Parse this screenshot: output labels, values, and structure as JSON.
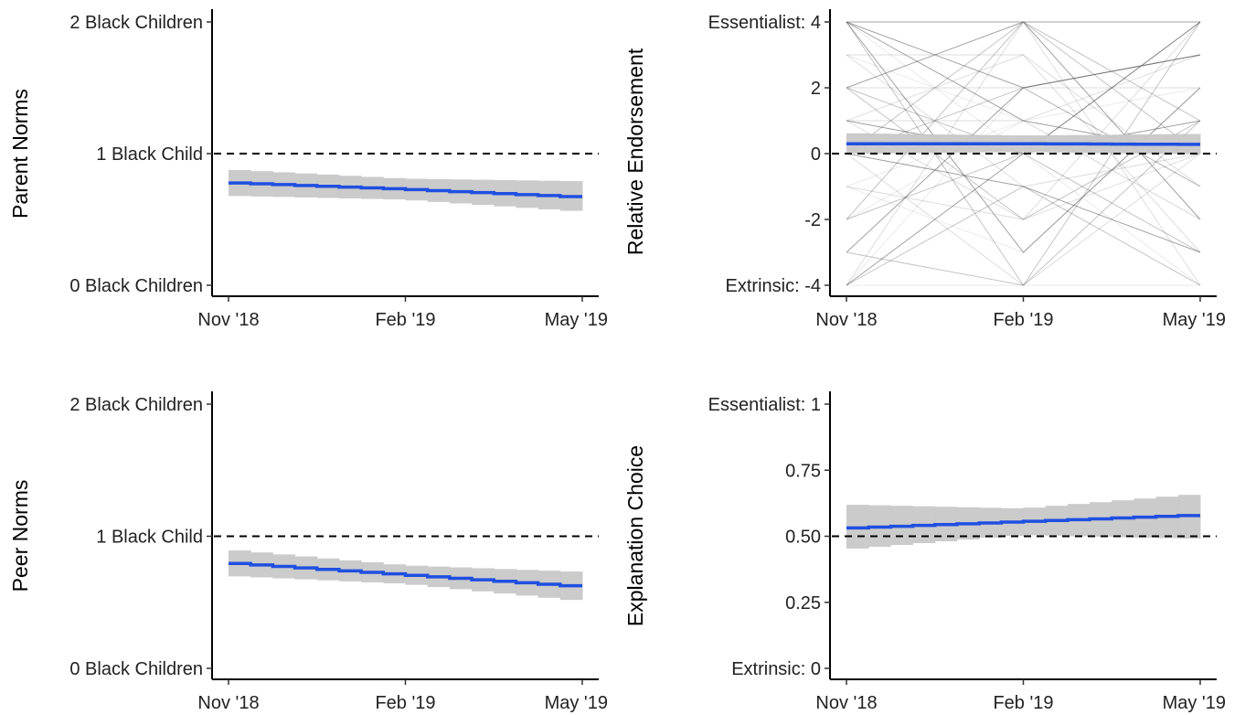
{
  "chart_data": [
    {
      "type": "line",
      "ylabel": "Parent Norms",
      "x": [
        "Nov '18",
        "Feb '19",
        "May '19"
      ],
      "y_ticks": [
        {
          "value": 0,
          "label": "0 Black Children"
        },
        {
          "value": 1,
          "label": "1 Black Child"
        },
        {
          "value": 2,
          "label": "2 Black Children"
        }
      ],
      "ylim": [
        0,
        2
      ],
      "reference_line": 1,
      "series": [
        {
          "values": [
            0.78,
            0.73,
            0.67
          ],
          "ci_lower": [
            0.68,
            0.65,
            0.56
          ],
          "ci_upper": [
            0.88,
            0.81,
            0.79
          ]
        }
      ],
      "colors": {
        "line": "#1f4fe0",
        "ribbon": "#c8c8c8",
        "reference": "#000000"
      }
    },
    {
      "type": "line",
      "ylabel": "Relative Endorsement",
      "x": [
        "Nov '18",
        "Feb '19",
        "May '19"
      ],
      "y_ticks": [
        {
          "value": -4,
          "label": "Extrinsic: -4"
        },
        {
          "value": -2,
          "label": "-2"
        },
        {
          "value": 0,
          "label": "0"
        },
        {
          "value": 2,
          "label": "2"
        },
        {
          "value": 4,
          "label": "Essentialist: 4"
        }
      ],
      "ylim": [
        -4,
        4
      ],
      "reference_line": 0,
      "series": [
        {
          "values": [
            0.3,
            0.3,
            0.28
          ],
          "ci_lower": [
            0.0,
            0.05,
            -0.02
          ],
          "ci_upper": [
            0.62,
            0.55,
            0.6
          ]
        }
      ],
      "individual_trajectories": [
        [
          4,
          4,
          4
        ],
        [
          4,
          -4,
          4
        ],
        [
          -4,
          4,
          -4
        ],
        [
          4,
          0,
          -4
        ],
        [
          -4,
          0,
          4
        ],
        [
          0,
          4,
          0
        ],
        [
          0,
          -4,
          0
        ],
        [
          3,
          1,
          -2
        ],
        [
          -3,
          2,
          3
        ],
        [
          2,
          -2,
          1
        ],
        [
          1,
          3,
          -1
        ],
        [
          -1,
          -3,
          2
        ],
        [
          4,
          1,
          0
        ],
        [
          -2,
          0,
          -3
        ],
        [
          2,
          2,
          2
        ],
        [
          -4,
          -4,
          -4
        ],
        [
          1,
          0,
          1
        ],
        [
          0,
          2,
          -1
        ],
        [
          3,
          -1,
          0
        ],
        [
          -2,
          1,
          2
        ],
        [
          4,
          2,
          3
        ],
        [
          -4,
          -1,
          -4
        ],
        [
          1,
          -2,
          4
        ],
        [
          0,
          0,
          0
        ],
        [
          2,
          4,
          -2
        ],
        [
          -3,
          -4,
          1
        ],
        [
          3,
          3,
          -3
        ],
        [
          -1,
          1,
          -2
        ],
        [
          4,
          -3,
          2
        ],
        [
          -2,
          4,
          1
        ],
        [
          1,
          1,
          3
        ],
        [
          -4,
          2,
          -1
        ],
        [
          0,
          -1,
          -3
        ],
        [
          2,
          0,
          4
        ],
        [
          -1,
          -2,
          0
        ]
      ],
      "colors": {
        "line": "#1f4fe0",
        "ribbon": "#c8c8c8",
        "reference": "#000000",
        "trajectories": "#555555"
      }
    },
    {
      "type": "line",
      "ylabel": "Peer Norms",
      "x": [
        "Nov '18",
        "Feb '19",
        "May '19"
      ],
      "y_ticks": [
        {
          "value": 0,
          "label": "0 Black Children"
        },
        {
          "value": 1,
          "label": "1 Black Child"
        },
        {
          "value": 2,
          "label": "2 Black Children"
        }
      ],
      "ylim": [
        0,
        2
      ],
      "reference_line": 1,
      "series": [
        {
          "values": [
            0.8,
            0.71,
            0.62
          ],
          "ci_lower": [
            0.7,
            0.64,
            0.51
          ],
          "ci_upper": [
            0.9,
            0.78,
            0.73
          ]
        }
      ],
      "colors": {
        "line": "#1f4fe0",
        "ribbon": "#c8c8c8",
        "reference": "#000000"
      }
    },
    {
      "type": "line",
      "ylabel": "Explanation Choice",
      "x": [
        "Nov '18",
        "Feb '19",
        "May '19"
      ],
      "y_ticks": [
        {
          "value": 0,
          "label": "Extrinsic: 0"
        },
        {
          "value": 0.25,
          "label": "0.25"
        },
        {
          "value": 0.5,
          "label": "0.50"
        },
        {
          "value": 0.75,
          "label": "0.75"
        },
        {
          "value": 1,
          "label": "Essentialist: 1"
        }
      ],
      "ylim": [
        0,
        1
      ],
      "reference_line": 0.5,
      "series": [
        {
          "values": [
            0.53,
            0.555,
            0.58
          ],
          "ci_lower": [
            0.45,
            0.505,
            0.49
          ],
          "ci_upper": [
            0.62,
            0.605,
            0.66
          ]
        }
      ],
      "colors": {
        "line": "#1f4fe0",
        "ribbon": "#c8c8c8",
        "reference": "#000000"
      }
    }
  ]
}
